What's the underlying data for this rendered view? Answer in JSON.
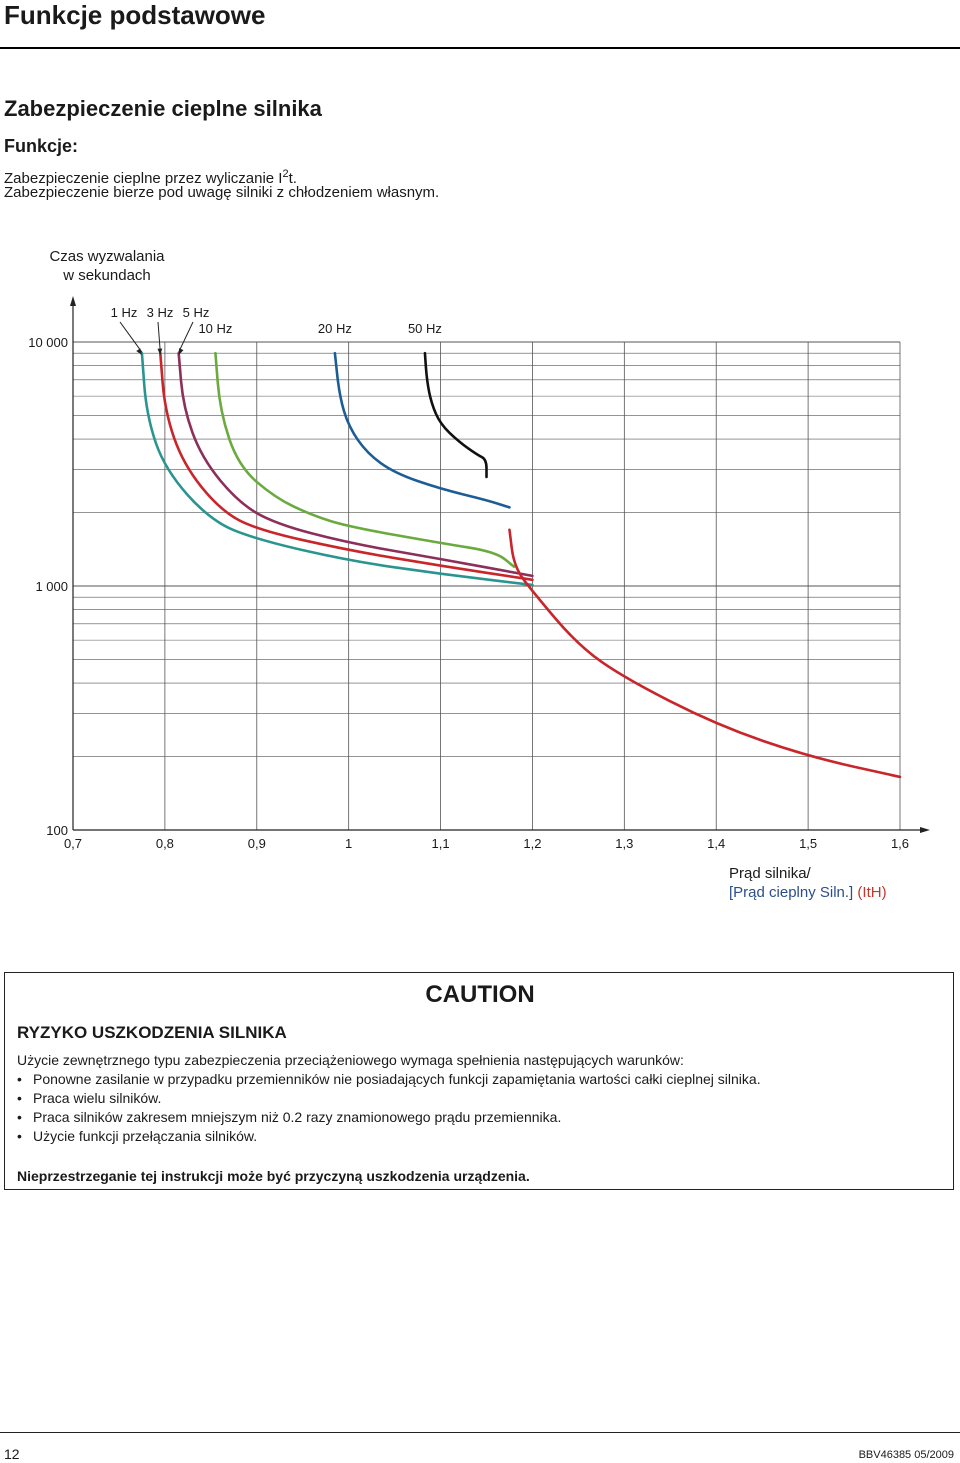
{
  "page_title": "Funkcje podstawowe",
  "section_title": "Zabezpieczenie cieplne silnika",
  "functions_label": "Funkcje:",
  "body": {
    "line1_pre": "Zabezpieczenie cieplne przez wyliczanie I",
    "line1_sup": "2",
    "line1_post": "t.",
    "line2": "Zabezpieczenie bierze pod uwagę silniki z chłodzeniem własnym."
  },
  "chart_data": {
    "type": "line",
    "title": "",
    "ylabel_line1": "Czas wyzwalania",
    "ylabel_line2": "w sekundach",
    "xlabel_line1": "Prąd silnika/",
    "xlabel_line2_part1": "[Prąd cieplny Siln.]",
    "xlabel_line2_part2": " (ItH)",
    "x_ticks": [
      "0,7",
      "0,8",
      "0,9",
      "1",
      "1,1",
      "1,2",
      "1,3",
      "1,4",
      "1,5",
      "1,6"
    ],
    "y_ticks": [
      "10 000",
      "1 000",
      "100"
    ],
    "xlim": [
      0.7,
      1.6
    ],
    "ylim": [
      100,
      10000
    ],
    "y_scale": "log",
    "grid": true,
    "x_label_color": "#2b4f8e",
    "ith_color": "#c0392b",
    "series": [
      {
        "name": "1 Hz",
        "color": "#2a9590",
        "x": [
          0.775,
          0.78,
          0.8,
          0.85,
          0.9,
          1.0,
          1.1,
          1.2
        ],
        "y": [
          9000,
          5000,
          3000,
          1850,
          1550,
          1270,
          1120,
          1010
        ]
      },
      {
        "name": "3 Hz",
        "color": "#c8262b",
        "x": [
          0.795,
          0.8,
          0.82,
          0.86,
          0.9,
          1.0,
          1.1,
          1.2
        ],
        "y": [
          9000,
          5200,
          3150,
          2050,
          1700,
          1400,
          1210,
          1060
        ]
      },
      {
        "name": "5 Hz",
        "color": "#8c2f5a",
        "x": [
          0.815,
          0.82,
          0.84,
          0.88,
          0.92,
          1.0,
          1.1,
          1.2
        ],
        "y": [
          9000,
          5400,
          3350,
          2200,
          1800,
          1500,
          1290,
          1100
        ]
      },
      {
        "name": "10 Hz",
        "color": "#6aaa3f",
        "x": [
          0.855,
          0.86,
          0.88,
          0.92,
          0.96,
          1.0,
          1.1,
          1.16,
          1.18
        ],
        "y": [
          9000,
          5200,
          3100,
          2300,
          1950,
          1750,
          1500,
          1380,
          1200
        ]
      },
      {
        "name": "20 Hz",
        "color": "#1d5d96",
        "x": [
          0.985,
          0.99,
          1.0,
          1.02,
          1.05,
          1.1,
          1.15,
          1.175
        ],
        "y": [
          9000,
          6000,
          4500,
          3500,
          2900,
          2500,
          2250,
          2100
        ]
      },
      {
        "name": "50 Hz",
        "color": "#111111",
        "x": [
          1.083,
          1.085,
          1.09,
          1.1,
          1.12,
          1.14,
          1.15,
          1.15
        ],
        "y": [
          9000,
          7000,
          5600,
          4600,
          3900,
          3450,
          3300,
          2800
        ]
      },
      {
        "name": "",
        "color": "#c8262b",
        "x": [
          1.175,
          1.18,
          1.2,
          1.25,
          1.3,
          1.4,
          1.5,
          1.6
        ],
        "y": [
          1700,
          1200,
          950,
          570,
          420,
          270,
          200,
          165
        ]
      }
    ]
  },
  "caution": {
    "title": "CAUTION",
    "heading": "RYZYKO USZKODZENIA SILNIKA",
    "lead": "Użycie zewnętrznego typu zabezpieczenia przeciążeniowego wymaga spełnienia następujących warunków:",
    "bullet_char": "•",
    "bullets": [
      "Ponowne zasilanie w przypadku przemienników nie posiadających funkcji zapamiętania wartości całki cieplnej silnika.",
      "Praca wielu silników.",
      "Praca silników zakresem mniejszym niż 0.2 razy znamionowego prądu przemiennika.",
      "Użycie funkcji przełączania silników."
    ],
    "final": "Nieprzestrzeganie tej instrukcji może być przyczyną uszkodzenia urządzenia."
  },
  "footer": {
    "page_number": "12",
    "doc_code": "BBV46385  05/2009"
  }
}
